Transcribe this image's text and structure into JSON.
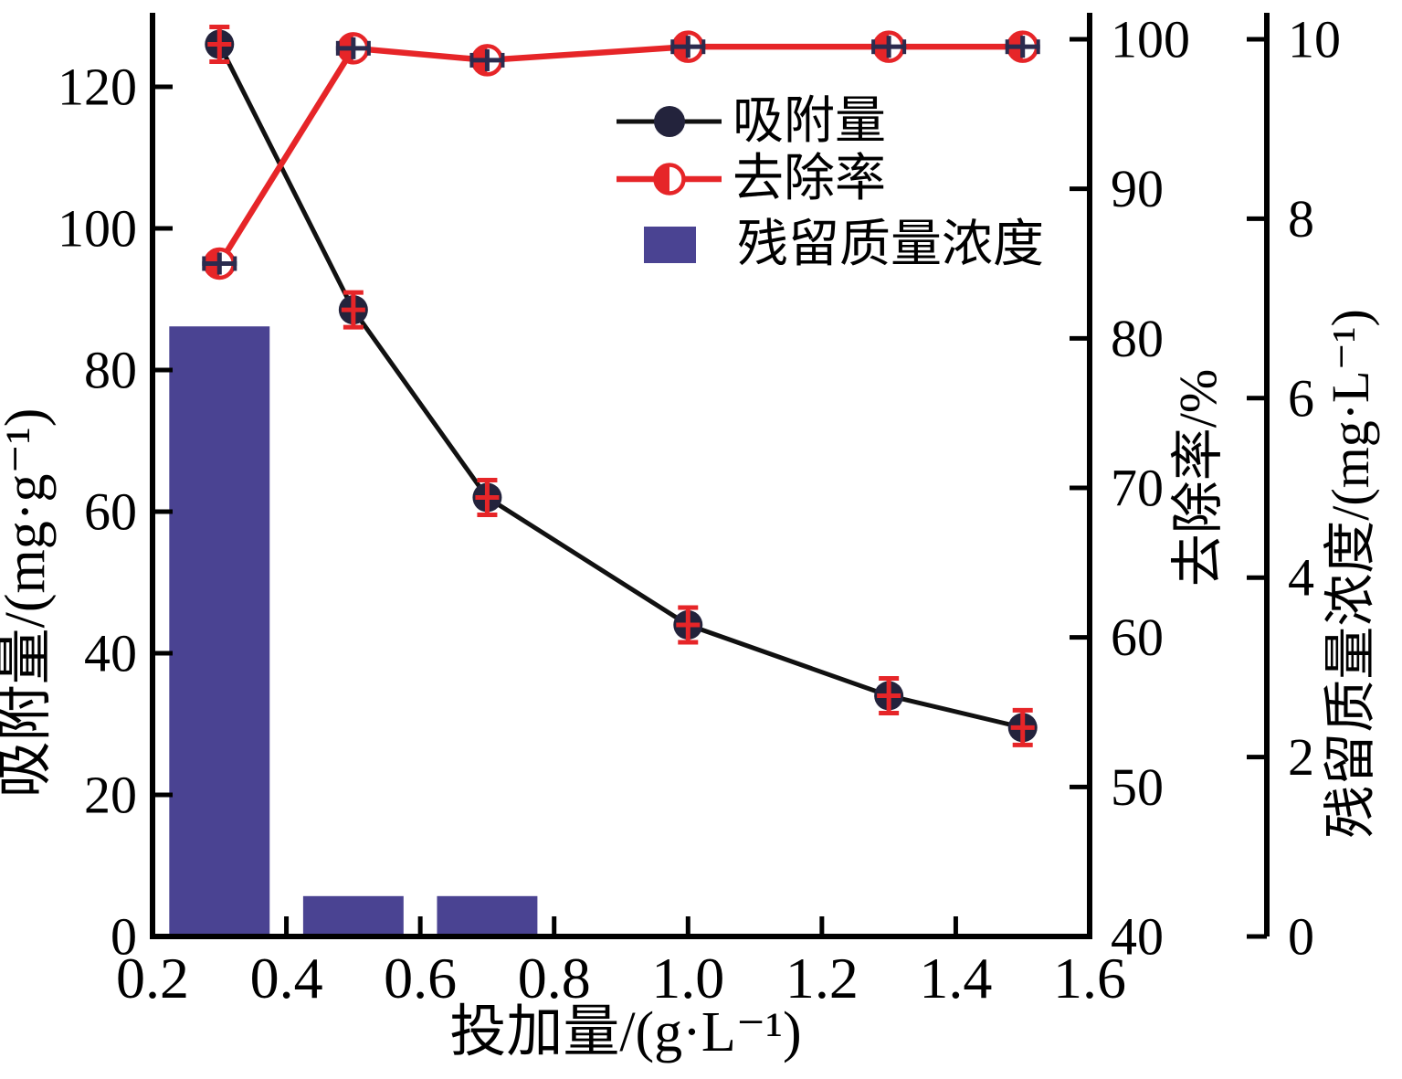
{
  "figure": {
    "background": "#ffffff"
  },
  "colors": {
    "adsorption_line": "#111111",
    "adsorption_marker": "#23233c",
    "removal_red": "#e62528",
    "navy_cross": "#2b2b4e",
    "bar_purple": "#4a4392",
    "text": "#000000"
  },
  "chart_data": {
    "type": "combo",
    "x": [
      0.3,
      0.5,
      0.7,
      1.0,
      1.3,
      1.5
    ],
    "series": [
      {
        "name": "吸附量",
        "type": "line",
        "axis": "left",
        "marker": "dark-circle-with-red-cross",
        "values": [
          126,
          88.5,
          62,
          44,
          34,
          29.5
        ]
      },
      {
        "name": "去除率",
        "type": "line",
        "axis": "right1",
        "marker": "red-half-filled-circle-with-navy-cross",
        "values": [
          85,
          99.4,
          98.6,
          99.5,
          99.5,
          99.5
        ]
      },
      {
        "name": "残留质量浓度",
        "type": "bar",
        "axis": "right2",
        "x": [
          0.3,
          0.5,
          0.7
        ],
        "values": [
          6.8,
          0.45,
          0.45
        ],
        "bar_width_data_units": 0.15
      }
    ],
    "axes": {
      "x": {
        "label": "投加量/(g·L⁻¹)",
        "range": [
          0.2,
          1.6
        ],
        "ticks": [
          "0.2",
          "0.4",
          "0.6",
          "0.8",
          "1.0",
          "1.2",
          "1.4",
          "1.6"
        ]
      },
      "left": {
        "label": "吸附量/(mg·g⁻¹)",
        "range": [
          0,
          130
        ],
        "ticks": [
          0,
          20,
          40,
          60,
          80,
          100,
          120
        ]
      },
      "right1": {
        "label": "去除率/%",
        "range": [
          40,
          102
        ],
        "ticks": [
          40,
          50,
          60,
          70,
          80,
          90,
          100
        ]
      },
      "right2": {
        "label": "残留质量浓度/(mg·L⁻¹)",
        "range": [
          0,
          10.3
        ],
        "ticks": [
          0,
          2,
          4,
          6,
          8,
          10
        ]
      }
    },
    "legend": {
      "position": "upper-center",
      "items": [
        {
          "label": "吸附量",
          "marker": "black-line-dark-circle"
        },
        {
          "label": "去除率",
          "marker": "red-line-half-filled-circle"
        },
        {
          "label": "残留质量浓度",
          "marker": "purple-rect"
        }
      ]
    },
    "grid": false
  }
}
